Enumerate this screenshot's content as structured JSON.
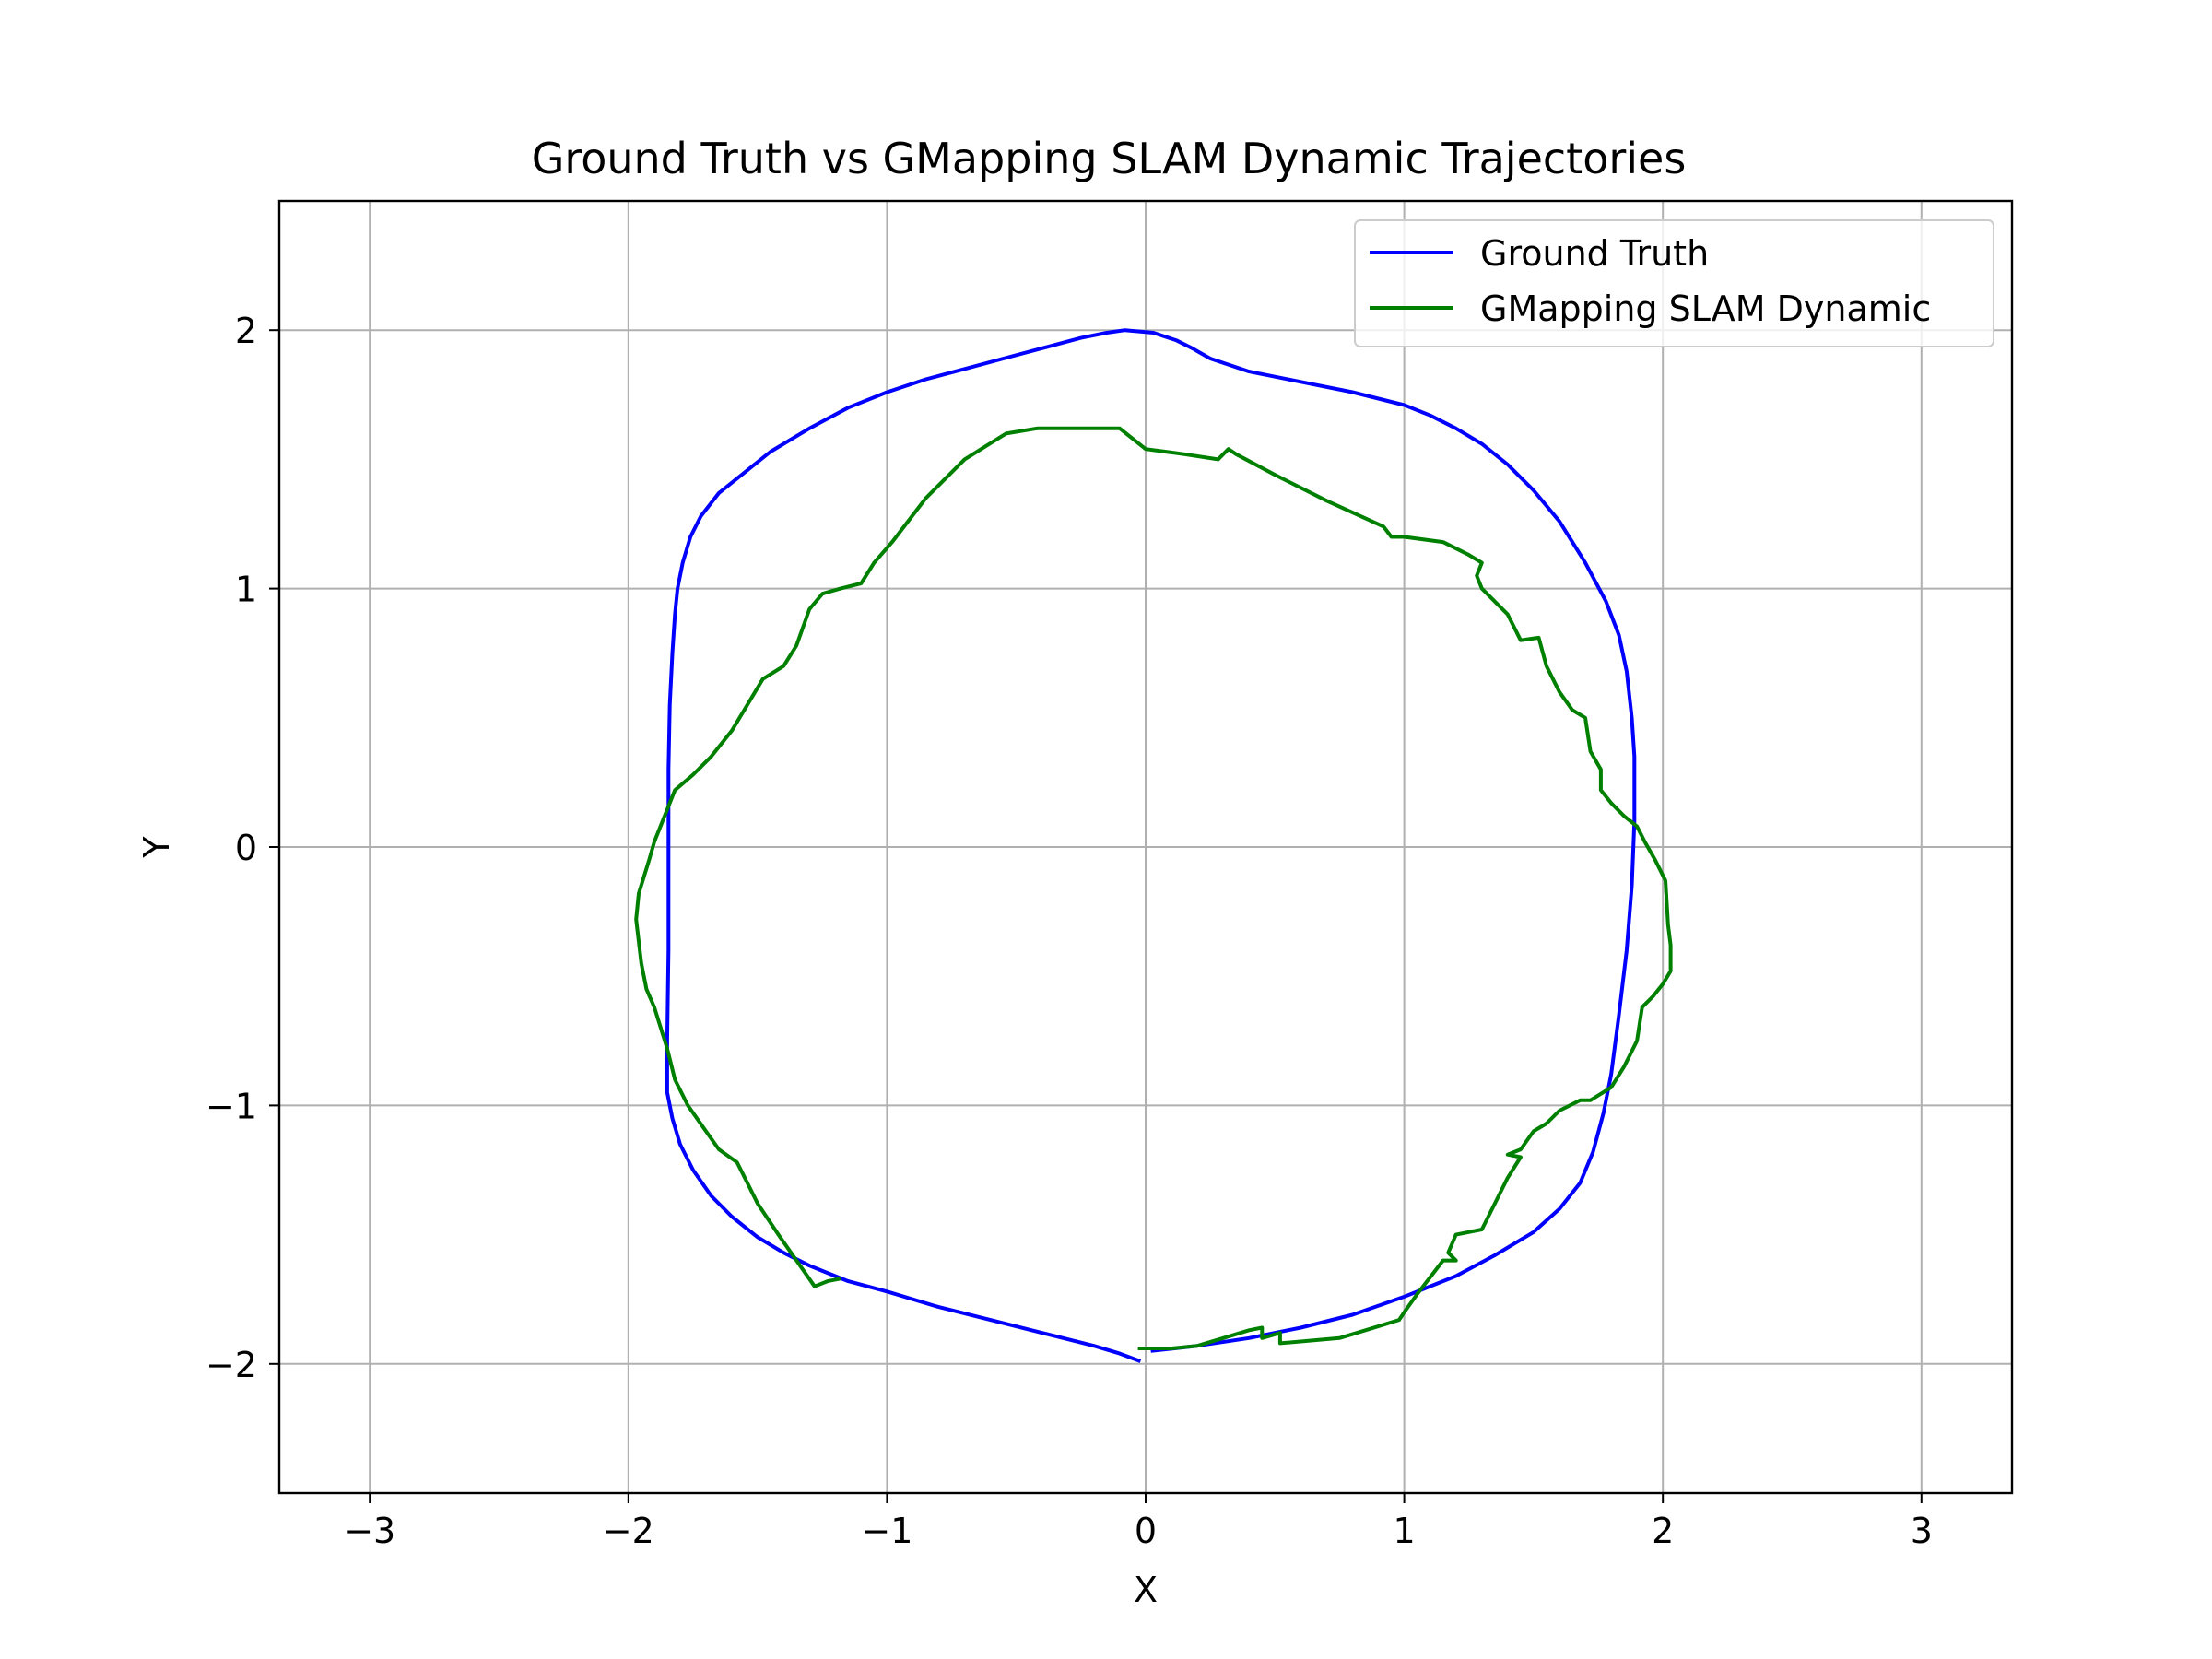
{
  "chart_data": {
    "type": "line",
    "title": "Ground Truth vs GMapping SLAM Dynamic Trajectories",
    "xlabel": "X",
    "ylabel": "Y",
    "xlim": [
      -3.35,
      3.35
    ],
    "ylim": [
      -2.5,
      2.5
    ],
    "grid": true,
    "legend": "top-right",
    "x_ticks": [
      {
        "value": -3,
        "label": "−3"
      },
      {
        "value": -2,
        "label": "−2"
      },
      {
        "value": -1,
        "label": "−1"
      },
      {
        "value": 0,
        "label": "0"
      },
      {
        "value": 1,
        "label": "1"
      },
      {
        "value": 2,
        "label": "2"
      },
      {
        "value": 3,
        "label": "3"
      }
    ],
    "y_ticks": [
      {
        "value": -2,
        "label": "−2"
      },
      {
        "value": -1,
        "label": "−1"
      },
      {
        "value": 0,
        "label": "0"
      },
      {
        "value": 1,
        "label": "1"
      },
      {
        "value": 2,
        "label": "2"
      }
    ],
    "series": [
      {
        "name": "Ground Truth",
        "color": "#0000ff",
        "points": [
          [
            0.02,
            -1.95
          ],
          [
            0.2,
            -1.93
          ],
          [
            0.4,
            -1.9
          ],
          [
            0.6,
            -1.86
          ],
          [
            0.8,
            -1.81
          ],
          [
            1.0,
            -1.74
          ],
          [
            1.2,
            -1.66
          ],
          [
            1.35,
            -1.58
          ],
          [
            1.5,
            -1.49
          ],
          [
            1.6,
            -1.4
          ],
          [
            1.68,
            -1.3
          ],
          [
            1.73,
            -1.18
          ],
          [
            1.77,
            -1.03
          ],
          [
            1.8,
            -0.88
          ],
          [
            1.83,
            -0.65
          ],
          [
            1.86,
            -0.4
          ],
          [
            1.88,
            -0.15
          ],
          [
            1.89,
            0.1
          ],
          [
            1.89,
            0.35
          ],
          [
            1.88,
            0.5
          ],
          [
            1.86,
            0.68
          ],
          [
            1.83,
            0.82
          ],
          [
            1.78,
            0.95
          ],
          [
            1.7,
            1.1
          ],
          [
            1.6,
            1.26
          ],
          [
            1.5,
            1.38
          ],
          [
            1.4,
            1.48
          ],
          [
            1.3,
            1.56
          ],
          [
            1.2,
            1.62
          ],
          [
            1.1,
            1.67
          ],
          [
            1.0,
            1.71
          ],
          [
            0.8,
            1.76
          ],
          [
            0.6,
            1.8
          ],
          [
            0.4,
            1.84
          ],
          [
            0.25,
            1.89
          ],
          [
            0.18,
            1.93
          ],
          [
            0.12,
            1.96
          ],
          [
            0.03,
            1.99
          ],
          [
            -0.08,
            2.0
          ],
          [
            -0.15,
            1.99
          ],
          [
            -0.25,
            1.97
          ],
          [
            -0.4,
            1.93
          ],
          [
            -0.55,
            1.89
          ],
          [
            -0.7,
            1.85
          ],
          [
            -0.85,
            1.81
          ],
          [
            -1.0,
            1.76
          ],
          [
            -1.15,
            1.7
          ],
          [
            -1.3,
            1.62
          ],
          [
            -1.45,
            1.53
          ],
          [
            -1.55,
            1.45
          ],
          [
            -1.65,
            1.37
          ],
          [
            -1.72,
            1.28
          ],
          [
            -1.76,
            1.2
          ],
          [
            -1.79,
            1.1
          ],
          [
            -1.81,
            1.0
          ],
          [
            -1.82,
            0.9
          ],
          [
            -1.83,
            0.75
          ],
          [
            -1.84,
            0.55
          ],
          [
            -1.845,
            0.3
          ],
          [
            -1.845,
            0.0
          ],
          [
            -1.845,
            -0.4
          ],
          [
            -1.85,
            -0.75
          ],
          [
            -1.85,
            -0.95
          ],
          [
            -1.83,
            -1.05
          ],
          [
            -1.8,
            -1.15
          ],
          [
            -1.75,
            -1.25
          ],
          [
            -1.68,
            -1.35
          ],
          [
            -1.6,
            -1.43
          ],
          [
            -1.5,
            -1.51
          ],
          [
            -1.4,
            -1.57
          ],
          [
            -1.3,
            -1.62
          ],
          [
            -1.15,
            -1.68
          ],
          [
            -1.0,
            -1.72
          ],
          [
            -0.8,
            -1.78
          ],
          [
            -0.6,
            -1.83
          ],
          [
            -0.4,
            -1.88
          ],
          [
            -0.2,
            -1.93
          ],
          [
            -0.1,
            -1.96
          ],
          [
            -0.02,
            -1.99
          ]
        ]
      },
      {
        "name": "GMapping SLAM Dynamic",
        "color": "#008000",
        "points": [
          [
            -0.03,
            -1.94
          ],
          [
            0.1,
            -1.94
          ],
          [
            0.2,
            -1.93
          ],
          [
            0.3,
            -1.9
          ],
          [
            0.4,
            -1.87
          ],
          [
            0.45,
            -1.86
          ],
          [
            0.45,
            -1.9
          ],
          [
            0.52,
            -1.88
          ],
          [
            0.52,
            -1.92
          ],
          [
            0.75,
            -1.9
          ],
          [
            0.85,
            -1.87
          ],
          [
            0.98,
            -1.83
          ],
          [
            1.0,
            -1.8
          ],
          [
            1.05,
            -1.73
          ],
          [
            1.15,
            -1.6
          ],
          [
            1.2,
            -1.6
          ],
          [
            1.17,
            -1.57
          ],
          [
            1.2,
            -1.5
          ],
          [
            1.3,
            -1.48
          ],
          [
            1.35,
            -1.38
          ],
          [
            1.4,
            -1.28
          ],
          [
            1.45,
            -1.2
          ],
          [
            1.4,
            -1.19
          ],
          [
            1.45,
            -1.17
          ],
          [
            1.5,
            -1.1
          ],
          [
            1.55,
            -1.07
          ],
          [
            1.6,
            -1.02
          ],
          [
            1.68,
            -0.98
          ],
          [
            1.72,
            -0.98
          ],
          [
            1.8,
            -0.93
          ],
          [
            1.85,
            -0.85
          ],
          [
            1.9,
            -0.75
          ],
          [
            1.92,
            -0.62
          ],
          [
            1.96,
            -0.58
          ],
          [
            2.0,
            -0.53
          ],
          [
            2.03,
            -0.48
          ],
          [
            2.03,
            -0.38
          ],
          [
            2.02,
            -0.3
          ],
          [
            2.01,
            -0.13
          ],
          [
            1.97,
            -0.05
          ],
          [
            1.93,
            0.02
          ],
          [
            1.9,
            0.08
          ],
          [
            1.85,
            0.12
          ],
          [
            1.8,
            0.17
          ],
          [
            1.76,
            0.22
          ],
          [
            1.76,
            0.3
          ],
          [
            1.72,
            0.37
          ],
          [
            1.7,
            0.5
          ],
          [
            1.65,
            0.53
          ],
          [
            1.6,
            0.6
          ],
          [
            1.55,
            0.7
          ],
          [
            1.52,
            0.81
          ],
          [
            1.45,
            0.8
          ],
          [
            1.4,
            0.9
          ],
          [
            1.3,
            1.0
          ],
          [
            1.28,
            1.05
          ],
          [
            1.3,
            1.1
          ],
          [
            1.25,
            1.13
          ],
          [
            1.15,
            1.18
          ],
          [
            1.0,
            1.2
          ],
          [
            0.95,
            1.2
          ],
          [
            0.92,
            1.24
          ],
          [
            0.7,
            1.34
          ],
          [
            0.5,
            1.44
          ],
          [
            0.35,
            1.52
          ],
          [
            0.32,
            1.54
          ],
          [
            0.28,
            1.5
          ],
          [
            0.15,
            1.52
          ],
          [
            0.0,
            1.54
          ],
          [
            -0.1,
            1.62
          ],
          [
            -0.3,
            1.62
          ],
          [
            -0.42,
            1.62
          ],
          [
            -0.54,
            1.6
          ],
          [
            -0.62,
            1.55
          ],
          [
            -0.7,
            1.5
          ],
          [
            -0.85,
            1.35
          ],
          [
            -0.98,
            1.18
          ],
          [
            -1.05,
            1.1
          ],
          [
            -1.1,
            1.02
          ],
          [
            -1.18,
            1.0
          ],
          [
            -1.25,
            0.98
          ],
          [
            -1.3,
            0.92
          ],
          [
            -1.35,
            0.78
          ],
          [
            -1.4,
            0.7
          ],
          [
            -1.48,
            0.65
          ],
          [
            -1.6,
            0.45
          ],
          [
            -1.68,
            0.35
          ],
          [
            -1.75,
            0.28
          ],
          [
            -1.82,
            0.22
          ],
          [
            -1.9,
            0.02
          ],
          [
            -1.92,
            -0.05
          ],
          [
            -1.96,
            -0.18
          ],
          [
            -1.97,
            -0.28
          ],
          [
            -1.95,
            -0.45
          ],
          [
            -1.93,
            -0.55
          ],
          [
            -1.9,
            -0.62
          ],
          [
            -1.85,
            -0.78
          ],
          [
            -1.82,
            -0.9
          ],
          [
            -1.77,
            -1.0
          ],
          [
            -1.7,
            -1.1
          ],
          [
            -1.65,
            -1.17
          ],
          [
            -1.58,
            -1.22
          ],
          [
            -1.55,
            -1.28
          ],
          [
            -1.5,
            -1.38
          ],
          [
            -1.42,
            -1.5
          ],
          [
            -1.35,
            -1.6
          ],
          [
            -1.28,
            -1.7
          ],
          [
            -1.23,
            -1.68
          ],
          [
            -1.18,
            -1.67
          ]
        ]
      }
    ]
  }
}
